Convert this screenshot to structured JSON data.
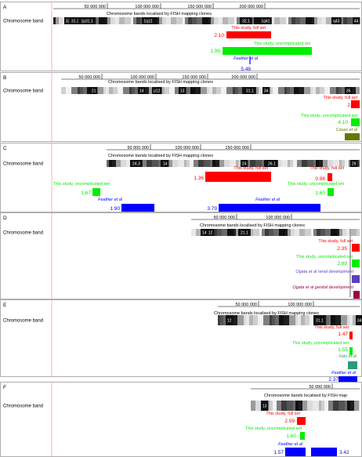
{
  "figure": {
    "band_track_label": "Chromosome band",
    "colors": {
      "full_set": "#ff0000",
      "uncomplicated_set": "#00ee00",
      "feather": "#0000ff",
      "casas": "#667700",
      "vats": "#2a9a7a",
      "ogata_renal": "#5b3fc0",
      "ogata_genital": "#9b0045",
      "left_guide": "#ff9aaa",
      "panel_border": "#9a9a9a"
    },
    "panels": [
      {
        "letter": "A",
        "axis_ticks": [
          "50 000 000",
          "100 000 000",
          "150 000 000",
          "200 000 000"
        ],
        "title": "Chromosome bands localised by FISH mapping clones",
        "band_labels": [
          "32",
          "31.3",
          "1p31.1",
          "1q12",
          "32.1",
          "1q41",
          "q43",
          "44"
        ],
        "tracks": [
          {
            "label": "This study, full set",
            "value_label": "2.10",
            "color_key": "full_set"
          },
          {
            "label": "This study, uncomplicated set",
            "value_label": "1.96",
            "color_key": "uncomplicated_set"
          },
          {
            "label": "Feather et al",
            "value_label": "5.48",
            "color_key": "feather"
          }
        ]
      },
      {
        "letter": "B",
        "axis_ticks": [
          "50 000 000",
          "100 000 000",
          "150 000 000",
          "200 000 000"
        ],
        "title": "Chromosome bands localised by FISH mapping clones",
        "band_labels": [
          "21",
          "14",
          "p12",
          "13",
          "31.1",
          "34",
          "35"
        ],
        "tracks": [
          {
            "label": "This study, full set",
            "value_label": "2.67",
            "color_key": "full_set"
          },
          {
            "label": "This study, uncomplicated set",
            "value_label": "4.10",
            "color_key": "uncomplicated_set"
          },
          {
            "label": "Casas et al",
            "value_label": "",
            "color_key": "casas"
          }
        ]
      },
      {
        "letter": "C",
        "axis_ticks": [
          "50 000 000",
          "100 000 000",
          "150 000 000"
        ],
        "title": "Chromosome bands localised by FISH mapping clones",
        "band_labels": [
          "24.3",
          "14",
          "24",
          "26.1",
          "29"
        ],
        "tracks": [
          {
            "label": "This study, full set",
            "value_label": "1.36",
            "color_key": "full_set"
          },
          {
            "label": "This study, full set",
            "value_label": "0.98",
            "color_key": "full_set"
          },
          {
            "label": "This study, uncomplicated set",
            "value_label": "1.67",
            "color_key": "uncomplicated_set"
          },
          {
            "label": "This study, uncomplicated set",
            "value_label": "1.60",
            "color_key": "uncomplicated_set"
          },
          {
            "label": "Feather et al",
            "value_label": "1.90",
            "color_key": "feather"
          },
          {
            "label": "Feather et al",
            "value_label": "3.79",
            "color_key": "feather"
          }
        ]
      },
      {
        "letter": "D",
        "axis_ticks": [
          "50 000 000",
          "100 000 000"
        ],
        "title": "Chromosome bands localised by FISH mapping clones",
        "band_labels": [
          "14",
          "12",
          "21.1"
        ],
        "tracks": [
          {
            "label": "This study, full set",
            "value_label": "2.35",
            "color_key": "full_set"
          },
          {
            "label": "This study, uncomplicated set",
            "value_label": "2.89",
            "color_key": "uncomplicated_set"
          },
          {
            "label": "Ogata et al renal development",
            "value_label": "",
            "color_key": "ogata_renal"
          },
          {
            "label": "Ogata et al genital development",
            "value_label": "",
            "color_key": "ogata_genital"
          }
        ]
      },
      {
        "letter": "E",
        "axis_ticks": [
          "50 000 000",
          "100 000 000"
        ],
        "title": "Chromosome bands localised by FISH mapping clones",
        "band_labels": [
          "12",
          "31.1",
          "34"
        ],
        "tracks": [
          {
            "label": "This study, full set",
            "value_label": "1.47",
            "color_key": "full_set"
          },
          {
            "label": "This study, uncomplicated set",
            "value_label": "1.55",
            "color_key": "uncomplicated_set"
          },
          {
            "label": "Vats et al",
            "value_label": "",
            "color_key": "vats"
          },
          {
            "label": "Feather et al",
            "value_label": "2.37",
            "color_key": "feather"
          }
        ]
      },
      {
        "letter": "F",
        "axis_ticks": [
          "50 000 000"
        ],
        "title": "Chromosome bands localised by FISH map",
        "band_labels": [
          "13"
        ],
        "tracks": [
          {
            "label": "This study, full set",
            "value_label": "2.09",
            "color_key": "full_set"
          },
          {
            "label": "This study, uncomplicated set",
            "value_label": "1.60",
            "color_key": "uncomplicated_set"
          },
          {
            "label": "Feather et al",
            "value_label": "1.57",
            "color_key": "feather"
          },
          {
            "label": "",
            "value_label": "3.42",
            "color_key": "feather"
          }
        ]
      }
    ]
  }
}
